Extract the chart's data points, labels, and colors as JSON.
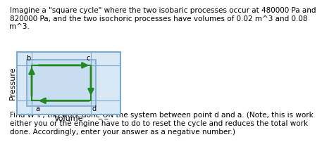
{
  "title_text": "Imagine a \"square cycle\" where the two isobaric processes occur at 480000 Pa and\n820000 Pa, and the two isochoric processes have volumes of 0.02 m^3 and 0.08\nm^3.",
  "body_text": "Find Wᵈₐ , the work done ̲O̲N̲ the system between point d and a. (Note, this is work\neither you or the engine have to do to reset the cycle and reduces the total work\ndone. Accordingly, enter your answer as a negative number.)",
  "xlabel": "Volume",
  "ylabel": "Pressure",
  "plot_bg": "#c8ddf0",
  "plot_outer_bg": "#d8e8f5",
  "plot_border": "#7aaad0",
  "arrow_color": "#228822",
  "points": {
    "a": [
      0.02,
      480000
    ],
    "b": [
      0.02,
      820000
    ],
    "c": [
      0.08,
      820000
    ],
    "d": [
      0.08,
      480000
    ]
  },
  "xlim": [
    0.005,
    0.11
  ],
  "ylim": [
    350000,
    950000
  ],
  "text_fontsize": 7.5,
  "body_fontsize": 7.5,
  "label_fontsize": 7
}
